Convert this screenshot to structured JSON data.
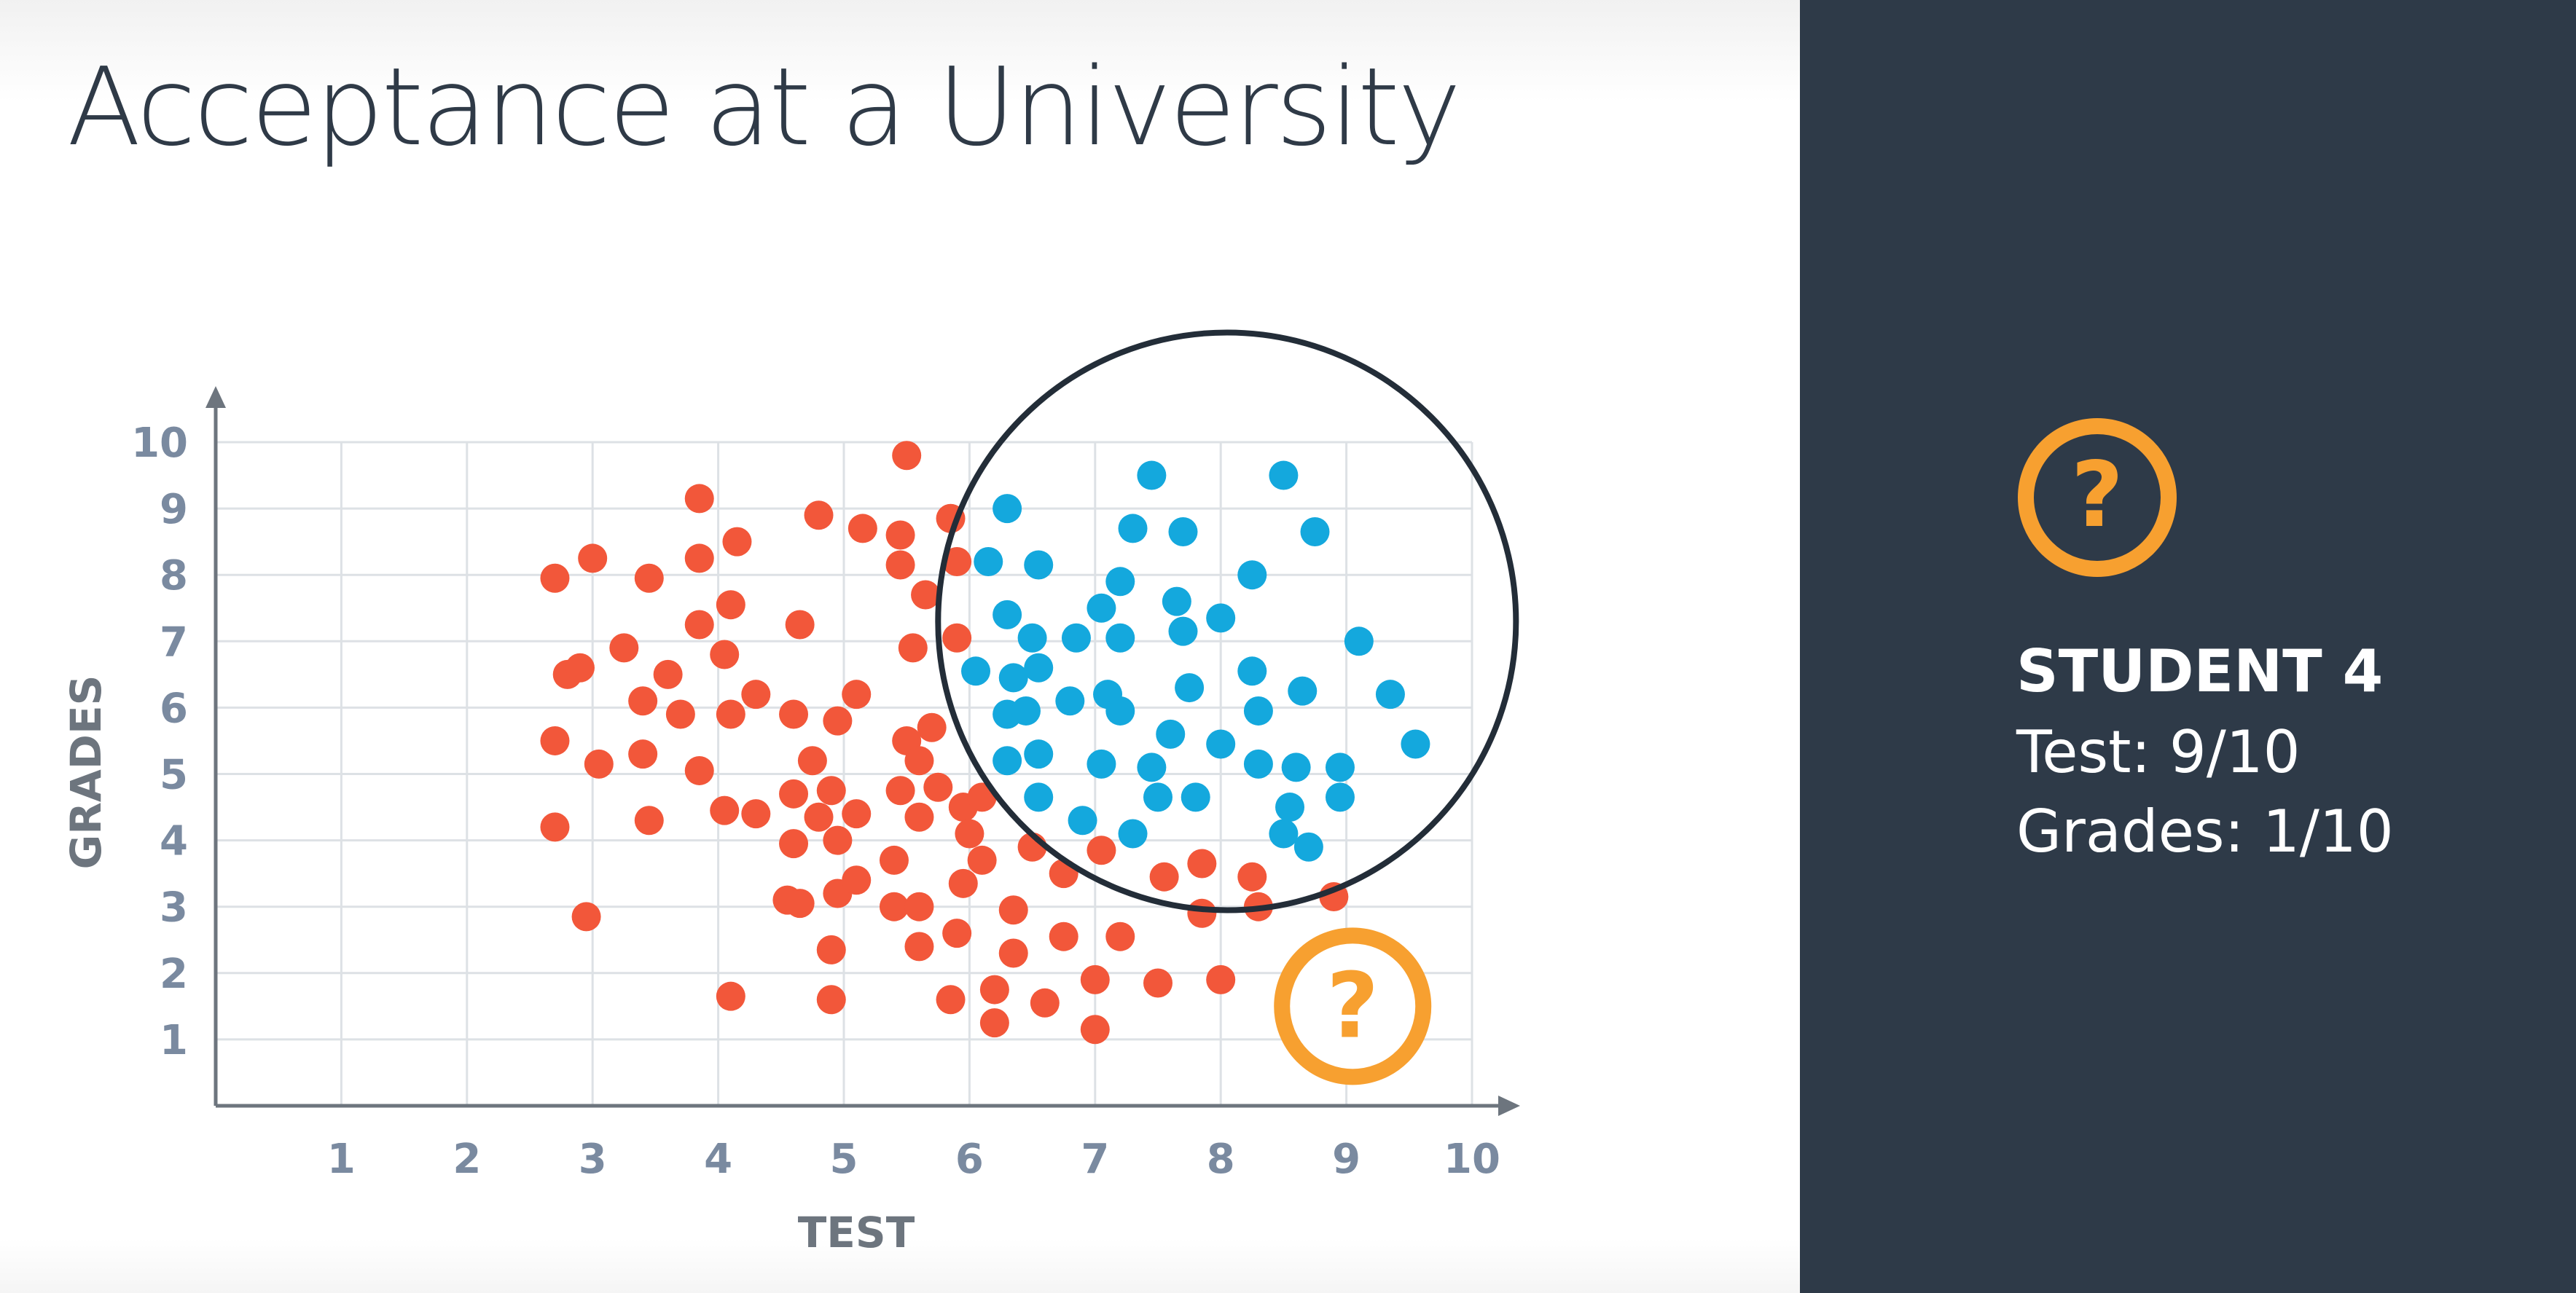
{
  "slide": {
    "title": "Acceptance at a University"
  },
  "colors": {
    "accepted": "#14a8dd",
    "rejected": "#f2573a",
    "question": "#f7a030",
    "panel_bg": "#2e3a48",
    "axis": "#6d757e",
    "grid": "#dde1e5",
    "tick_label": "#7a8aa0",
    "circle": "#232d38"
  },
  "panel": {
    "icon": "question-icon",
    "student_title": "STUDENT 4",
    "test_line": "Test: 9/10",
    "grades_line": "Grades: 1/10"
  },
  "chart_data": {
    "type": "scatter",
    "title": "",
    "xlabel": "TEST",
    "ylabel": "GRADES",
    "xlim": [
      0,
      10
    ],
    "ylim": [
      0,
      10
    ],
    "xticks": [
      "1",
      "2",
      "3",
      "4",
      "5",
      "6",
      "7",
      "8",
      "9",
      "10"
    ],
    "yticks": [
      "1",
      "2",
      "3",
      "4",
      "5",
      "6",
      "7",
      "8",
      "9",
      "10"
    ],
    "grid": true,
    "legend": "none",
    "series": [
      {
        "color": "#f2573a",
        "points": [
          [
            2.7,
            7.95
          ],
          [
            3.0,
            8.25
          ],
          [
            3.45,
            7.95
          ],
          [
            3.85,
            9.15
          ],
          [
            3.85,
            8.25
          ],
          [
            4.15,
            8.5
          ],
          [
            4.8,
            8.9
          ],
          [
            5.15,
            8.7
          ],
          [
            5.45,
            8.6
          ],
          [
            5.5,
            9.8
          ],
          [
            5.85,
            8.85
          ],
          [
            5.9,
            8.2
          ],
          [
            5.45,
            8.15
          ],
          [
            5.65,
            7.7
          ],
          [
            2.8,
            6.5
          ],
          [
            2.9,
            6.6
          ],
          [
            3.25,
            6.9
          ],
          [
            3.4,
            6.1
          ],
          [
            3.6,
            6.5
          ],
          [
            3.7,
            5.9
          ],
          [
            3.85,
            7.25
          ],
          [
            4.05,
            6.8
          ],
          [
            4.1,
            7.55
          ],
          [
            4.1,
            5.9
          ],
          [
            4.3,
            6.2
          ],
          [
            4.6,
            5.9
          ],
          [
            4.65,
            7.25
          ],
          [
            4.95,
            5.8
          ],
          [
            5.1,
            6.2
          ],
          [
            5.55,
            6.9
          ],
          [
            5.9,
            7.05
          ],
          [
            5.7,
            5.7
          ],
          [
            2.7,
            5.5
          ],
          [
            3.05,
            5.15
          ],
          [
            3.4,
            5.3
          ],
          [
            3.85,
            5.05
          ],
          [
            4.05,
            4.45
          ],
          [
            4.3,
            4.4
          ],
          [
            3.45,
            4.3
          ],
          [
            2.7,
            4.2
          ],
          [
            4.6,
            4.7
          ],
          [
            4.75,
            5.2
          ],
          [
            4.8,
            4.35
          ],
          [
            4.9,
            4.75
          ],
          [
            4.95,
            4.0
          ],
          [
            5.1,
            4.4
          ],
          [
            5.4,
            3.7
          ],
          [
            5.45,
            4.75
          ],
          [
            5.5,
            5.5
          ],
          [
            5.6,
            5.2
          ],
          [
            5.6,
            4.35
          ],
          [
            5.75,
            4.8
          ],
          [
            5.95,
            4.5
          ],
          [
            6.0,
            4.1
          ],
          [
            6.1,
            3.7
          ],
          [
            6.1,
            4.65
          ],
          [
            4.6,
            3.95
          ],
          [
            4.55,
            3.1
          ],
          [
            4.65,
            3.05
          ],
          [
            4.95,
            3.2
          ],
          [
            5.1,
            3.4
          ],
          [
            5.4,
            3.0
          ],
          [
            5.6,
            3.0
          ],
          [
            5.95,
            3.35
          ],
          [
            6.35,
            2.95
          ],
          [
            6.5,
            3.9
          ],
          [
            6.75,
            3.5
          ],
          [
            7.05,
            3.85
          ],
          [
            7.55,
            3.45
          ],
          [
            7.85,
            3.65
          ],
          [
            8.25,
            3.45
          ],
          [
            8.3,
            3.0
          ],
          [
            8.9,
            3.15
          ],
          [
            2.95,
            2.85
          ],
          [
            4.1,
            1.65
          ],
          [
            4.9,
            2.35
          ],
          [
            4.9,
            1.6
          ],
          [
            5.6,
            2.4
          ],
          [
            5.85,
            1.6
          ],
          [
            5.9,
            2.6
          ],
          [
            6.2,
            1.75
          ],
          [
            6.2,
            1.25
          ],
          [
            6.35,
            2.3
          ],
          [
            6.6,
            1.55
          ],
          [
            6.75,
            2.55
          ],
          [
            7.0,
            1.9
          ],
          [
            7.0,
            1.15
          ],
          [
            7.2,
            2.55
          ],
          [
            7.5,
            1.85
          ],
          [
            7.85,
            2.9
          ],
          [
            8.0,
            1.9
          ]
        ]
      },
      {
        "color": "#14a8dd",
        "points": [
          [
            6.3,
            9.0
          ],
          [
            7.45,
            9.5
          ],
          [
            8.5,
            9.5
          ],
          [
            7.3,
            8.7
          ],
          [
            7.7,
            8.65
          ],
          [
            8.75,
            8.65
          ],
          [
            6.15,
            8.2
          ],
          [
            6.55,
            8.15
          ],
          [
            7.2,
            7.9
          ],
          [
            8.25,
            8.0
          ],
          [
            6.3,
            7.4
          ],
          [
            6.5,
            7.05
          ],
          [
            6.85,
            7.05
          ],
          [
            7.05,
            7.5
          ],
          [
            7.2,
            7.05
          ],
          [
            7.65,
            7.6
          ],
          [
            7.7,
            7.15
          ],
          [
            8.0,
            7.35
          ],
          [
            9.1,
            7.0
          ],
          [
            6.05,
            6.55
          ],
          [
            6.35,
            6.45
          ],
          [
            6.55,
            6.6
          ],
          [
            6.3,
            5.9
          ],
          [
            6.45,
            5.95
          ],
          [
            6.8,
            6.1
          ],
          [
            7.1,
            6.2
          ],
          [
            7.2,
            5.95
          ],
          [
            7.75,
            6.3
          ],
          [
            8.25,
            6.55
          ],
          [
            8.3,
            5.95
          ],
          [
            8.65,
            6.25
          ],
          [
            9.35,
            6.2
          ],
          [
            6.3,
            5.2
          ],
          [
            6.55,
            5.3
          ],
          [
            7.05,
            5.15
          ],
          [
            7.45,
            5.1
          ],
          [
            7.6,
            5.6
          ],
          [
            8.0,
            5.45
          ],
          [
            8.3,
            5.15
          ],
          [
            8.6,
            5.1
          ],
          [
            8.95,
            5.1
          ],
          [
            9.55,
            5.45
          ],
          [
            6.55,
            4.65
          ],
          [
            6.9,
            4.3
          ],
          [
            7.3,
            4.1
          ],
          [
            7.5,
            4.65
          ],
          [
            7.8,
            4.65
          ],
          [
            8.5,
            4.1
          ],
          [
            8.55,
            4.5
          ],
          [
            8.7,
            3.9
          ],
          [
            8.95,
            4.65
          ]
        ]
      }
    ],
    "annotations": [
      {
        "type": "circle-highlight",
        "cx": 8.05,
        "cy": 7.3,
        "r_x": 2.3
      },
      {
        "type": "question-marker",
        "x": 9.05,
        "y": 1.5
      }
    ]
  }
}
